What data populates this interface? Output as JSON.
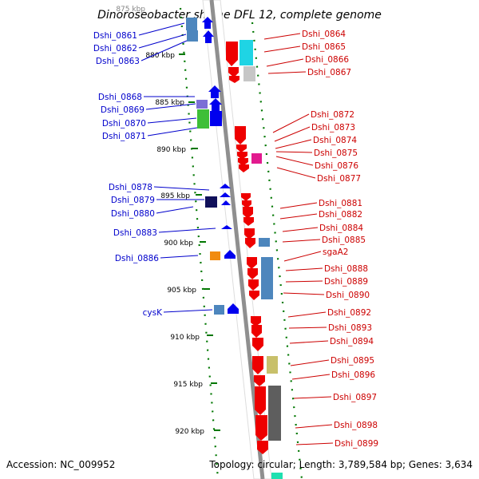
{
  "title": "Dinoroseobacter shibae DFL 12, complete genome",
  "footer": {
    "accession": "Accession: NC_009952",
    "summary": "Topology: circular; Length: 3,789,584 bp; Genes: 3,634"
  },
  "scale_labels": [
    "875 kbp",
    "880 kbp",
    "885 kbp",
    "890 kbp",
    "895 kbp",
    "900 kbp",
    "905 kbp",
    "910 kbp",
    "915 kbp",
    "920 kbp"
  ],
  "left_genes": [
    "Dshi_0861",
    "Dshi_0862",
    "Dshi_0863",
    "Dshi_0868",
    "Dshi_0869",
    "Dshi_0870",
    "Dshi_0871",
    "Dshi_0878",
    "Dshi_0879",
    "Dshi_0880",
    "Dshi_0883",
    "Dshi_0886",
    "cysK"
  ],
  "right_genes": [
    "Dshi_0864",
    "Dshi_0865",
    "Dshi_0866",
    "Dshi_0867",
    "Dshi_0872",
    "Dshi_0873",
    "Dshi_0874",
    "Dshi_0875",
    "Dshi_0876",
    "Dshi_0877",
    "Dshi_0881",
    "Dshi_0882",
    "Dshi_0884",
    "Dshi_0885",
    "sgaA2",
    "Dshi_0888",
    "Dshi_0889",
    "Dshi_0890",
    "Dshi_0892",
    "Dshi_0893",
    "Dshi_0894",
    "Dshi_0895",
    "Dshi_0896",
    "Dshi_0897",
    "Dshi_0898",
    "Dshi_0899"
  ],
  "colors": {
    "forward_strand": "#ee0000",
    "reverse_strand": "#0000ee",
    "left_label": "#0000cc",
    "right_label": "#cc0000",
    "backbone": "#999999",
    "tick": "#007700"
  }
}
